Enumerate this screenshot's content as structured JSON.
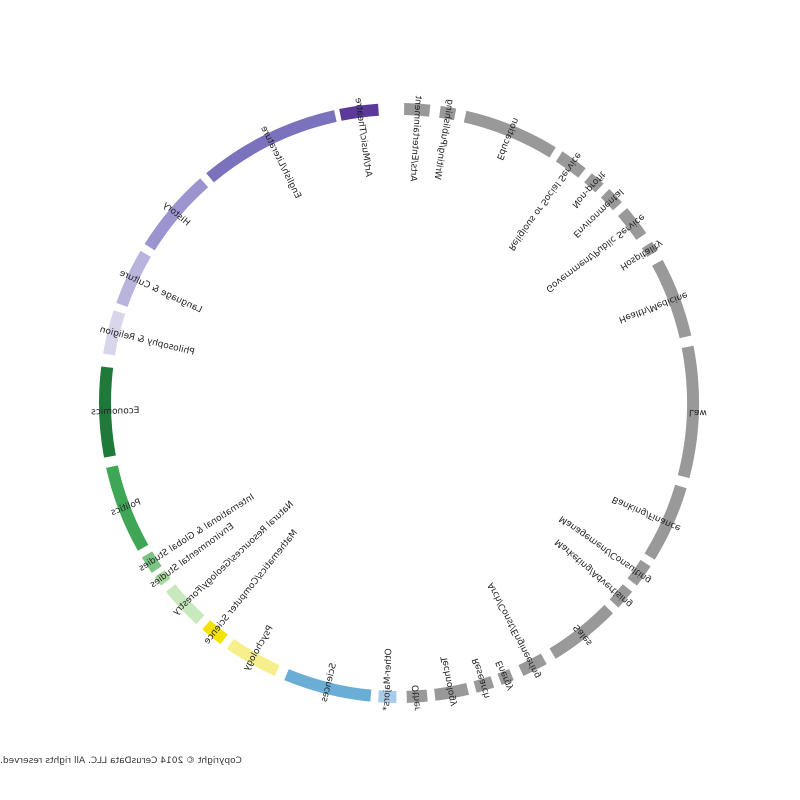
{
  "chart_data": {
    "type": "chord-ring",
    "start_angle_deg": 4,
    "segments": [
      {
        "label": "Art/Music/Theatre",
        "start": 4.0,
        "end": 11.5,
        "color": "#5b3a9a"
      },
      {
        "label": "English/Literature",
        "start": 12.5,
        "end": 40.0,
        "color": "#7b72bd"
      },
      {
        "label": "History",
        "start": 41.5,
        "end": 58.0,
        "color": "#9b94cf"
      },
      {
        "label": "Language & Culture",
        "start": 59.5,
        "end": 70.5,
        "color": "#b8b4dd"
      },
      {
        "label": "Philosophy & Religion",
        "start": 72.0,
        "end": 80.5,
        "color": "#d8d6ea"
      },
      {
        "label": "Economics",
        "start": 83.0,
        "end": 100.5,
        "color": "#1f7a3a"
      },
      {
        "label": "Politics",
        "start": 102.5,
        "end": 119.5,
        "color": "#3fa656"
      },
      {
        "label": "International & Global Studies",
        "start": 121.0,
        "end": 124.5,
        "color": "#7cc483"
      },
      {
        "label": "Environmental Studies",
        "start": 125.5,
        "end": 127.5,
        "color": "#a6d99c"
      },
      {
        "label": "Natural Resources/Geology/Forestry",
        "start": 129.0,
        "end": 137.5,
        "color": "#c8e8bd"
      },
      {
        "label": "Mathematics/Computer Science",
        "start": 139.0,
        "end": 143.5,
        "color": "#f2e300"
      },
      {
        "label": "Psychology",
        "start": 145.0,
        "end": 155.5,
        "color": "#f6ef8c"
      },
      {
        "label": "Sciences",
        "start": 157.5,
        "end": 174.5,
        "color": "#6aaed6"
      },
      {
        "label": "Other-Majors*",
        "start": 176.0,
        "end": 179.5,
        "color": "#a9cde8"
      },
      {
        "label": "Other",
        "start": 181.5,
        "end": 185.5,
        "color": "#999999"
      },
      {
        "label": "Technology",
        "start": 187.0,
        "end": 193.5,
        "color": "#999999"
      },
      {
        "label": "Research",
        "start": 195.0,
        "end": 198.5,
        "color": "#999999"
      },
      {
        "label": "Energy",
        "start": 200.0,
        "end": 202.5,
        "color": "#999999"
      },
      {
        "label": "Arch/Const/Engineering",
        "start": 204.5,
        "end": 209.5,
        "color": "#999999"
      },
      {
        "label": "Sales",
        "start": 211.5,
        "end": 225.5,
        "color": "#999999"
      },
      {
        "label": "Marketing/Advertising",
        "start": 227.0,
        "end": 231.0,
        "color": "#999999"
      },
      {
        "label": "Management/Consulting",
        "start": 232.5,
        "end": 237.0,
        "color": "#999999"
      },
      {
        "label": "Banking/Finance",
        "start": 238.5,
        "end": 253.5,
        "color": "#999999"
      },
      {
        "label": "Law",
        "start": 255.5,
        "end": 281.0,
        "color": "#999999"
      },
      {
        "label": "Health/Medicine",
        "start": 283.0,
        "end": 298.5,
        "color": "#999999"
      },
      {
        "label": "Hospitality",
        "start": 300.5,
        "end": 302.5,
        "color": "#999999"
      },
      {
        "label": "Government/Public Service",
        "start": 304.5,
        "end": 310.5,
        "color": "#999999"
      },
      {
        "label": "Environmental",
        "start": 312.0,
        "end": 315.5,
        "color": "#999999"
      },
      {
        "label": "Non-profit",
        "start": 317.0,
        "end": 320.0,
        "color": "#999999"
      },
      {
        "label": "Religious or Social Service",
        "start": 321.5,
        "end": 327.0,
        "color": "#999999"
      },
      {
        "label": "Education",
        "start": 328.5,
        "end": 347.0,
        "color": "#999999"
      },
      {
        "label": "Writing/Publishing",
        "start": 349.0,
        "end": 352.0,
        "color": "#999999"
      },
      {
        "label": "Arts/Entertainment",
        "start": 354.0,
        "end": 359.0,
        "color": "#999999"
      }
    ]
  },
  "footer": {
    "copyright": "Copyright © 2014 CerusData LLC.  All rights reserved."
  }
}
